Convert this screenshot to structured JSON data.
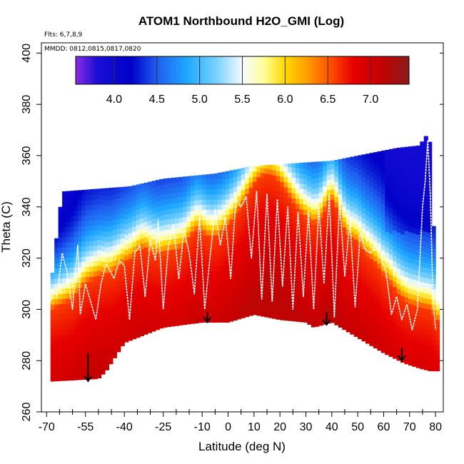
{
  "chart_data": {
    "type": "heatmap",
    "title": "ATOM1 Northbound H2O_GMI (Log)",
    "flights_label": "Flts: 6,7,8,9",
    "dates_label": "MMDD: 0812,0815,0817,0820",
    "xlabel": "Latitude (deg N)",
    "ylabel": "Theta (C)",
    "xlim": [
      -72,
      83
    ],
    "ylim": [
      260,
      404
    ],
    "x_ticks": [
      -70,
      -55,
      -40,
      -25,
      -10,
      0,
      10,
      20,
      30,
      40,
      50,
      60,
      70,
      80
    ],
    "x_tick_labels": [
      "-70",
      "-55",
      "-40",
      "-25",
      "-10",
      "0",
      "10",
      "20",
      "30",
      "40",
      "50",
      "60",
      "70",
      "80"
    ],
    "x_minor_ticks": [
      -65,
      -60,
      -50,
      -45,
      -35,
      -30,
      -20,
      -15,
      -5,
      5,
      15,
      25,
      35,
      45,
      55,
      65,
      75
    ],
    "y_ticks": [
      260,
      280,
      300,
      320,
      340,
      360,
      380,
      400
    ],
    "y_tick_labels": [
      "260",
      "280",
      "300",
      "320",
      "340",
      "360",
      "380",
      "400"
    ],
    "colorbar": {
      "range": [
        3.55,
        7.45
      ],
      "ticks": [
        4.0,
        4.5,
        5.0,
        5.5,
        6.0,
        6.5,
        7.0
      ],
      "tick_labels": [
        "4.0",
        "4.5",
        "5.0",
        "5.5",
        "6.0",
        "6.5",
        "7.0"
      ],
      "stops": [
        [
          3.55,
          "#8a2be2"
        ],
        [
          3.8,
          "#1a0fd6"
        ],
        [
          4.2,
          "#0000c8"
        ],
        [
          4.5,
          "#1f5ef0"
        ],
        [
          4.85,
          "#1ea7ff"
        ],
        [
          5.2,
          "#79d2ff"
        ],
        [
          5.5,
          "#f4fbff"
        ],
        [
          5.75,
          "#ffff9a"
        ],
        [
          6.0,
          "#ffd800"
        ],
        [
          6.25,
          "#ff9f00"
        ],
        [
          6.55,
          "#ff4800"
        ],
        [
          6.8,
          "#e60000"
        ],
        [
          7.1,
          "#c80000"
        ],
        [
          7.45,
          "#8b1a1a"
        ]
      ]
    },
    "domain_top": [
      [
        -68,
        312
      ],
      [
        -66,
        330
      ],
      [
        -64,
        346
      ],
      [
        -38,
        348
      ],
      [
        -25,
        351
      ],
      [
        -5,
        353
      ],
      [
        10,
        356
      ],
      [
        25,
        357
      ],
      [
        40,
        358
      ],
      [
        55,
        361
      ],
      [
        65,
        363
      ],
      [
        74,
        364
      ],
      [
        76,
        368
      ],
      [
        78,
        365
      ],
      [
        80,
        313
      ],
      [
        81,
        300
      ]
    ],
    "domain_bottom": [
      [
        -68,
        272
      ],
      [
        -50,
        273
      ],
      [
        -47,
        276
      ],
      [
        -40,
        287
      ],
      [
        -25,
        293
      ],
      [
        -10,
        295
      ],
      [
        0,
        295
      ],
      [
        10,
        298
      ],
      [
        20,
        296
      ],
      [
        30,
        295
      ],
      [
        33,
        293
      ],
      [
        40,
        295
      ],
      [
        50,
        289
      ],
      [
        60,
        283
      ],
      [
        68,
        279
      ],
      [
        74,
        277
      ],
      [
        78,
        276
      ],
      [
        81,
        276
      ]
    ],
    "boundary_layer": [
      [
        -68,
        300
      ],
      [
        -60,
        304
      ],
      [
        -55,
        310
      ],
      [
        -50,
        313
      ],
      [
        -45,
        314
      ],
      [
        -40,
        318
      ],
      [
        -30,
        320
      ],
      [
        -20,
        323
      ],
      [
        -10,
        325
      ],
      [
        0,
        328
      ],
      [
        10,
        330
      ],
      [
        20,
        331
      ],
      [
        30,
        331
      ],
      [
        40,
        330
      ],
      [
        50,
        326
      ],
      [
        55,
        318
      ],
      [
        60,
        308
      ],
      [
        70,
        302
      ],
      [
        78,
        300
      ],
      [
        81,
        295
      ]
    ],
    "moist_bumps": [
      [
        15,
        12,
        22
      ],
      [
        40,
        4,
        12
      ],
      [
        -12,
        4,
        6
      ],
      [
        60,
        5,
        5
      ],
      [
        -33,
        4,
        4
      ]
    ],
    "flight_trace": [
      [
        -68.5,
        303
      ],
      [
        -67.5,
        308
      ],
      [
        -66,
        305
      ],
      [
        -64,
        322
      ],
      [
        -62,
        314
      ],
      [
        -60,
        300
      ],
      [
        -58,
        325
      ],
      [
        -57,
        298
      ],
      [
        -55,
        310
      ],
      [
        -53,
        303
      ],
      [
        -51,
        296
      ],
      [
        -49,
        310
      ],
      [
        -47,
        318
      ],
      [
        -44,
        312
      ],
      [
        -42,
        319
      ],
      [
        -40,
        317
      ],
      [
        -38,
        296
      ],
      [
        -36,
        322
      ],
      [
        -34,
        325
      ],
      [
        -32,
        305
      ],
      [
        -30,
        327
      ],
      [
        -28,
        319
      ],
      [
        -27,
        335
      ],
      [
        -25,
        300
      ],
      [
        -23,
        325
      ],
      [
        -21,
        333
      ],
      [
        -19,
        312
      ],
      [
        -17,
        331
      ],
      [
        -15,
        322
      ],
      [
        -13,
        306
      ],
      [
        -11,
        336
      ],
      [
        -9,
        300
      ],
      [
        -7,
        320
      ],
      [
        -5,
        339
      ],
      [
        -3,
        325
      ],
      [
        -1,
        336
      ],
      [
        1,
        312
      ],
      [
        3,
        343
      ],
      [
        5,
        340
      ],
      [
        7,
        344
      ],
      [
        9,
        320
      ],
      [
        11,
        346
      ],
      [
        13,
        304
      ],
      [
        15,
        345
      ],
      [
        17,
        303
      ],
      [
        19,
        343
      ],
      [
        21,
        309
      ],
      [
        23,
        340
      ],
      [
        25,
        300
      ],
      [
        27,
        338
      ],
      [
        29,
        305
      ],
      [
        31,
        338
      ],
      [
        33,
        300
      ],
      [
        35,
        340
      ],
      [
        37,
        310
      ],
      [
        39,
        345
      ],
      [
        41,
        297
      ],
      [
        43,
        342
      ],
      [
        45,
        313
      ],
      [
        47,
        335
      ],
      [
        49,
        301
      ],
      [
        51,
        330
      ],
      [
        53,
        323
      ],
      [
        55,
        322
      ],
      [
        57,
        325
      ],
      [
        59,
        320
      ],
      [
        61,
        314
      ],
      [
        63,
        298
      ],
      [
        65,
        305
      ],
      [
        67,
        296
      ],
      [
        69,
        302
      ],
      [
        71,
        292
      ],
      [
        73,
        300
      ],
      [
        75,
        340
      ],
      [
        76,
        350
      ],
      [
        77,
        366
      ],
      [
        78,
        345
      ],
      [
        79,
        305
      ],
      [
        80,
        292
      ]
    ],
    "arrows": [
      [
        -54,
        283,
        272
      ],
      [
        -8,
        299,
        295
      ],
      [
        38,
        299,
        294
      ],
      [
        67,
        285,
        280
      ]
    ]
  }
}
